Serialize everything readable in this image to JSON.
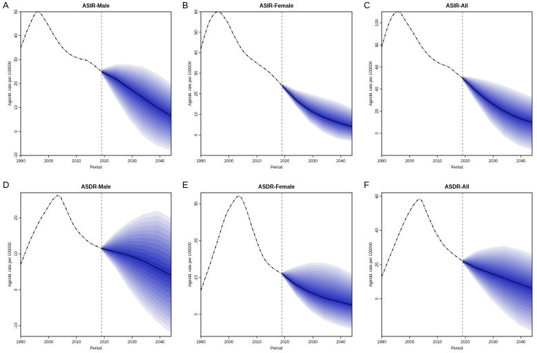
{
  "chart_data": [
    {
      "letter": "A",
      "type": "line",
      "title": "ASIR-Male",
      "xlabel": "Period",
      "ylabel": "Agestd. rate per 100000",
      "xlim": [
        1990,
        2044
      ],
      "ylim": [
        -10,
        50
      ],
      "xticks": [
        1990,
        2000,
        2010,
        2020,
        2030,
        2040
      ],
      "yticks": [
        -10,
        0,
        10,
        20,
        30,
        40,
        50
      ],
      "split_year": 2019,
      "series": [
        {
          "name": "observed",
          "x": [
            1990,
            1993,
            1996,
            1999,
            2002,
            2005,
            2008,
            2011,
            2014,
            2017,
            2019
          ],
          "values": [
            35,
            44,
            50,
            46,
            40,
            35,
            32,
            30.5,
            29.5,
            27,
            25
          ]
        },
        {
          "name": "predicted",
          "x": [
            2019,
            2024,
            2029,
            2034,
            2039,
            2044
          ],
          "values": [
            25,
            22,
            18,
            14,
            10,
            6.5
          ]
        }
      ],
      "bands": {
        "x": [
          2019,
          2024,
          2029,
          2034,
          2039,
          2044
        ],
        "lower": [
          24,
          14,
          5,
          -2,
          -6,
          -8
        ],
        "upper": [
          26,
          28,
          28,
          27,
          24,
          20
        ]
      }
    },
    {
      "letter": "B",
      "type": "line",
      "title": "ASIR-Female",
      "xlabel": "Period",
      "ylabel": "Agestd. rate per 100000",
      "xlim": [
        1990,
        2044
      ],
      "ylim": [
        -10,
        60
      ],
      "xticks": [
        1990,
        2000,
        2010,
        2020,
        2030,
        2040
      ],
      "yticks": [
        0,
        10,
        20,
        30,
        40,
        50,
        60
      ],
      "split_year": 2019,
      "series": [
        {
          "name": "observed",
          "x": [
            1990,
            1993,
            1996,
            1999,
            2002,
            2005,
            2008,
            2011,
            2014,
            2017,
            2019
          ],
          "values": [
            42,
            55,
            60,
            56,
            48,
            41,
            37,
            34,
            31,
            27,
            24
          ]
        },
        {
          "name": "predicted",
          "x": [
            2019,
            2024,
            2029,
            2034,
            2039,
            2044
          ],
          "values": [
            24,
            17,
            12,
            8.5,
            6,
            4
          ]
        }
      ],
      "bands": {
        "x": [
          2019,
          2024,
          2029,
          2034,
          2039,
          2044
        ],
        "lower": [
          23,
          14,
          6,
          1,
          -2,
          -3
        ],
        "upper": [
          25,
          22,
          20,
          18,
          16,
          13
        ]
      }
    },
    {
      "letter": "C",
      "type": "line",
      "title": "ASIR-All",
      "xlabel": "Period",
      "ylabel": "Agestd. rate per 100000",
      "xlim": [
        1990,
        2044
      ],
      "ylim": [
        -20,
        110
      ],
      "xticks": [
        1990,
        2000,
        2010,
        2020,
        2030,
        2040
      ],
      "yticks": [
        0,
        20,
        40,
        60,
        80,
        100
      ],
      "split_year": 2019,
      "series": [
        {
          "name": "observed",
          "x": [
            1990,
            1993,
            1996,
            1999,
            2002,
            2005,
            2008,
            2011,
            2014,
            2017,
            2019
          ],
          "values": [
            78,
            102,
            110,
            100,
            88,
            76,
            68,
            63,
            60,
            54,
            50
          ]
        },
        {
          "name": "predicted",
          "x": [
            2019,
            2024,
            2029,
            2034,
            2039,
            2044
          ],
          "values": [
            50,
            38,
            28,
            20,
            14,
            10
          ]
        }
      ],
      "bands": {
        "x": [
          2019,
          2024,
          2029,
          2034,
          2039,
          2044
        ],
        "lower": [
          48,
          28,
          10,
          -3,
          -11,
          -15
        ],
        "upper": [
          52,
          50,
          47,
          43,
          38,
          33
        ]
      }
    },
    {
      "letter": "D",
      "type": "line",
      "title": "ASDR-Male",
      "xlabel": "Period",
      "ylabel": "Agestd. rate per 100000",
      "xlim": [
        1990,
        2044
      ],
      "ylim": [
        -13,
        27
      ],
      "xticks": [
        1990,
        2000,
        2010,
        2020,
        2030,
        2040
      ],
      "yticks": [
        -10,
        0,
        10,
        20
      ],
      "split_year": 2019,
      "series": [
        {
          "name": "observed",
          "x": [
            1990,
            1993,
            1996,
            1999,
            2002,
            2004,
            2006,
            2009,
            2012,
            2015,
            2019
          ],
          "values": [
            7,
            13,
            18,
            22,
            25.5,
            26,
            23,
            18,
            15,
            13,
            11.5
          ]
        },
        {
          "name": "predicted",
          "x": [
            2019,
            2024,
            2029,
            2034,
            2039,
            2044
          ],
          "values": [
            11.5,
            10.5,
            9.5,
            8,
            6,
            4
          ]
        }
      ],
      "bands": {
        "x": [
          2019,
          2024,
          2029,
          2034,
          2039,
          2044
        ],
        "lower": [
          11,
          6,
          0,
          -5,
          -9,
          -12
        ],
        "upper": [
          12,
          16,
          19,
          21,
          22,
          20
        ]
      }
    },
    {
      "letter": "E",
      "type": "line",
      "title": "ASDR-Female",
      "xlabel": "Period",
      "ylabel": "Agestd. rate per 100000",
      "xlim": [
        1990,
        2044
      ],
      "ylim": [
        -6,
        33
      ],
      "xticks": [
        1990,
        2000,
        2010,
        2020,
        2030,
        2040
      ],
      "yticks": [
        0,
        10,
        20,
        30
      ],
      "split_year": 2019,
      "series": [
        {
          "name": "observed",
          "x": [
            1990,
            1993,
            1996,
            1999,
            2002,
            2004,
            2006,
            2009,
            2012,
            2015,
            2019
          ],
          "values": [
            6.5,
            13,
            20,
            27,
            31,
            32,
            29,
            22,
            16,
            13,
            11
          ]
        },
        {
          "name": "predicted",
          "x": [
            2019,
            2024,
            2029,
            2034,
            2039,
            2044
          ],
          "values": [
            11,
            8,
            6,
            4.5,
            3.5,
            2.5
          ]
        }
      ],
      "bands": {
        "x": [
          2019,
          2024,
          2029,
          2034,
          2039,
          2044
        ],
        "lower": [
          10.5,
          5,
          1,
          -1.5,
          -3,
          -4
        ],
        "upper": [
          11.5,
          13,
          14,
          14,
          13,
          11
        ]
      }
    },
    {
      "letter": "F",
      "type": "line",
      "title": "ASDR-All",
      "xlabel": "Period",
      "ylabel": "Agestd. rate per 100000",
      "xlim": [
        1990,
        2044
      ],
      "ylim": [
        -22,
        62
      ],
      "xticks": [
        1990,
        2000,
        2010,
        2020,
        2030,
        2040
      ],
      "yticks": [
        0,
        20,
        40,
        60
      ],
      "split_year": 2019,
      "series": [
        {
          "name": "observed",
          "x": [
            1990,
            1993,
            1996,
            1999,
            2002,
            2004,
            2006,
            2009,
            2012,
            2015,
            2019
          ],
          "values": [
            13,
            25,
            37,
            48,
            56,
            58,
            51,
            40,
            32,
            27,
            22
          ]
        },
        {
          "name": "predicted",
          "x": [
            2019,
            2024,
            2029,
            2034,
            2039,
            2044
          ],
          "values": [
            22,
            18,
            15,
            12,
            9,
            6
          ]
        }
      ],
      "bands": {
        "x": [
          2019,
          2024,
          2029,
          2034,
          2039,
          2044
        ],
        "lower": [
          21,
          10,
          0,
          -8,
          -15,
          -19
        ],
        "upper": [
          23,
          28,
          30,
          31,
          29,
          26
        ]
      }
    }
  ]
}
